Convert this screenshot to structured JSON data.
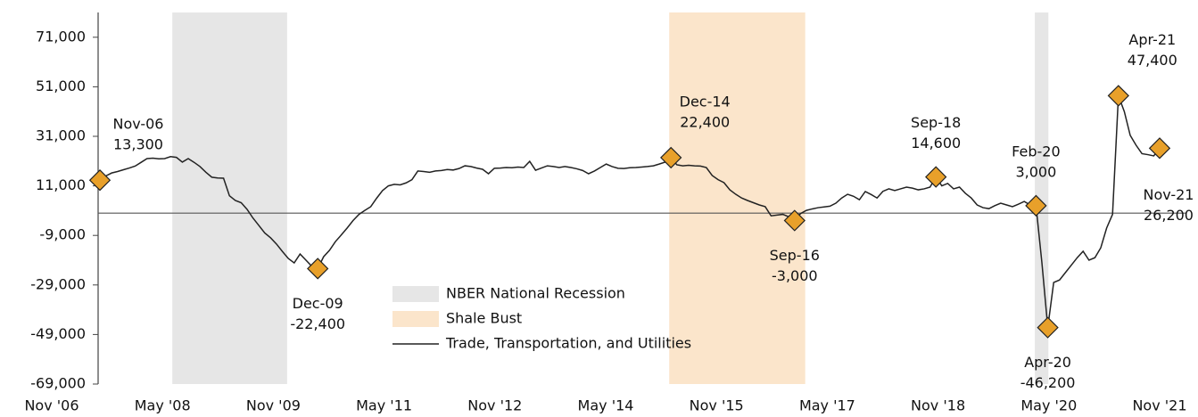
{
  "chart_data": {
    "type": "line",
    "categories": [
      "Nov '06",
      null,
      null,
      null,
      null,
      null,
      null,
      null,
      null,
      null,
      null,
      null,
      null,
      null,
      null,
      null,
      null,
      null,
      "May '08",
      null,
      null,
      null,
      null,
      null,
      null,
      null,
      null,
      null,
      null,
      null,
      null,
      null,
      null,
      null,
      null,
      null,
      "Nov '09",
      null,
      null,
      null,
      null,
      null,
      null,
      null,
      null,
      null,
      null,
      null,
      null,
      null,
      null,
      null,
      null,
      null,
      "May '11",
      null,
      null,
      null,
      null,
      null,
      null,
      null,
      null,
      null,
      null,
      null,
      null,
      null,
      null,
      null,
      null,
      null,
      "Nov '12",
      null,
      null,
      null,
      null,
      null,
      null,
      null,
      null,
      null,
      null,
      null,
      null,
      null,
      null,
      null,
      null,
      null,
      "May '14",
      null,
      null,
      null,
      null,
      null,
      null,
      null,
      null,
      null,
      null,
      null,
      null,
      null,
      null,
      null,
      null,
      null,
      "Nov '15",
      null,
      null,
      null,
      null,
      null,
      null,
      null,
      null,
      null,
      null,
      null,
      null,
      null,
      null,
      null,
      null,
      null,
      "May '17",
      null,
      null,
      null,
      null,
      null,
      null,
      null,
      null,
      null,
      null,
      null,
      null,
      null,
      null,
      null,
      null,
      null,
      "Nov '18",
      null,
      null,
      null,
      null,
      null,
      null,
      null,
      null,
      null,
      null,
      null,
      null,
      null,
      null,
      null,
      null,
      null,
      "May '20",
      null,
      null,
      null,
      null,
      null,
      null,
      null,
      null,
      null,
      null,
      null,
      null,
      null,
      null,
      null,
      null,
      null,
      "Nov '21"
    ],
    "series": [
      {
        "name": "Trade, Transportation, and Utilities",
        "color": "#222222",
        "values": [
          13300,
          15000,
          16200,
          16800,
          17500,
          18200,
          19000,
          20500,
          22000,
          22200,
          21900,
          22000,
          22800,
          22500,
          20600,
          22000,
          20500,
          18800,
          16500,
          14500,
          14200,
          14100,
          7000,
          5100,
          4200,
          1500,
          -2000,
          -5000,
          -8000,
          -10000,
          -12500,
          -15500,
          -18300,
          -20100,
          -16500,
          -19000,
          -21500,
          -22400,
          -17600,
          -15000,
          -11500,
          -8800,
          -6000,
          -3000,
          -500,
          1100,
          2600,
          6000,
          9100,
          11000,
          11600,
          11400,
          12200,
          13500,
          17000,
          16800,
          16500,
          17000,
          17200,
          17600,
          17400,
          18000,
          19100,
          18800,
          18200,
          17700,
          15900,
          18100,
          18200,
          18400,
          18300,
          18600,
          18400,
          20900,
          17300,
          18200,
          19100,
          18800,
          18400,
          18800,
          18400,
          17900,
          17200,
          15900,
          17000,
          18400,
          19800,
          18800,
          18100,
          18000,
          18300,
          18400,
          18600,
          18800,
          19100,
          19800,
          20600,
          22400,
          19500,
          19100,
          19300,
          19100,
          19000,
          18400,
          15200,
          13500,
          12300,
          9400,
          7600,
          6100,
          5100,
          4200,
          3300,
          2600,
          -1100,
          -800,
          -500,
          -1500,
          -3000,
          -200,
          1100,
          1700,
          2200,
          2500,
          2800,
          4000,
          6100,
          7600,
          6800,
          5400,
          8700,
          7500,
          6100,
          8800,
          9800,
          9100,
          9800,
          10500,
          10100,
          9400,
          9800,
          10500,
          14600,
          11000,
          12000,
          9800,
          10500,
          8000,
          6100,
          3300,
          2200,
          1800,
          3000,
          4000,
          3300,
          2600,
          3600,
          4700,
          3300,
          3000,
          -20000,
          -46200,
          -28000,
          -27000,
          -24000,
          -21000,
          -18000,
          -15400,
          -19000,
          -18000,
          -14000,
          -6000,
          -500,
          47400,
          41000,
          31400,
          27400,
          24000,
          23600,
          23100,
          26200
        ]
      }
    ],
    "bands": [
      {
        "name": "NBER National Recession",
        "color": "#e6e6e6",
        "ranges": [
          [
            12.3,
            31.8
          ],
          [
            158.8,
            161.1
          ]
        ]
      },
      {
        "name": "Shale Bust",
        "color": "#fbe5cb",
        "ranges": [
          [
            96.7,
            119.8
          ]
        ]
      }
    ],
    "annotations": [
      {
        "index": 0,
        "date": "Nov-06",
        "value_label": "13,300"
      },
      {
        "index": 37,
        "date": "Dec-09",
        "value_label": "-22,400"
      },
      {
        "index": 97,
        "date": "Dec-14",
        "value_label": "22,400"
      },
      {
        "index": 118,
        "date": "Sep-16",
        "value_label": "-3,000"
      },
      {
        "index": 142,
        "date": "Sep-18",
        "value_label": "14,600"
      },
      {
        "index": 159,
        "date": "Feb-20",
        "value_label": "3,000"
      },
      {
        "index": 161,
        "date": "Apr-20",
        "value_label": "-46,200"
      },
      {
        "index": 173,
        "date": "Apr-21",
        "value_label": "47,400"
      },
      {
        "index": 180,
        "date": "Nov-21",
        "value_label": "26,200"
      }
    ],
    "marker_color": "#e8a02a",
    "ylim": [
      -69000,
      81000
    ],
    "yticks": [
      {
        "value": -69000,
        "label": "-69,000"
      },
      {
        "value": -49000,
        "label": "-49,000"
      },
      {
        "value": -29000,
        "label": "-29,000"
      },
      {
        "value": -9000,
        "label": "-9,000"
      },
      {
        "value": 11000,
        "label": "11,000"
      },
      {
        "value": 31000,
        "label": "31,000"
      },
      {
        "value": 51000,
        "label": "51,000"
      },
      {
        "value": 71000,
        "label": "71,000"
      }
    ]
  }
}
